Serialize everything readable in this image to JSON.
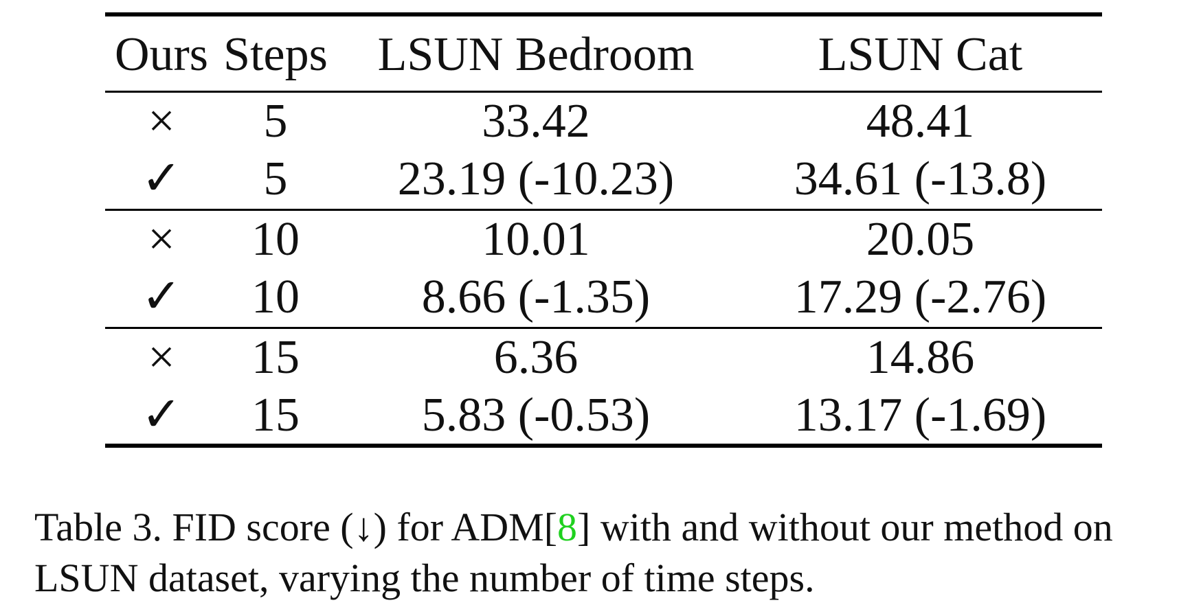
{
  "table": {
    "headers": [
      "Ours",
      "Steps",
      "LSUN Bedroom",
      "LSUN Cat"
    ],
    "groups": [
      {
        "rows": [
          {
            "ours": "×",
            "steps": "5",
            "bedroom": "33.42",
            "cat": "48.41"
          },
          {
            "ours": "✓",
            "steps": "5",
            "bedroom": "23.19 (-10.23)",
            "cat": "34.61 (-13.8)"
          }
        ]
      },
      {
        "rows": [
          {
            "ours": "×",
            "steps": "10",
            "bedroom": "10.01",
            "cat": "20.05"
          },
          {
            "ours": "✓",
            "steps": "10",
            "bedroom": "8.66 (-1.35)",
            "cat": "17.29 (-2.76)"
          }
        ]
      },
      {
        "rows": [
          {
            "ours": "×",
            "steps": "15",
            "bedroom": "6.36",
            "cat": "14.86"
          },
          {
            "ours": "✓",
            "steps": "15",
            "bedroom": "5.83 (-0.53)",
            "cat": "13.17 (-1.69)"
          }
        ]
      }
    ]
  },
  "caption": {
    "prefix": "Table 3. FID score (↓) for ADM[",
    "citation": "8",
    "suffix": "] with and without our method on LSUN dataset, varying the number of time steps."
  },
  "colors": {
    "citation_link": "#1fd11f",
    "text": "#111111",
    "rules": "#000000"
  }
}
